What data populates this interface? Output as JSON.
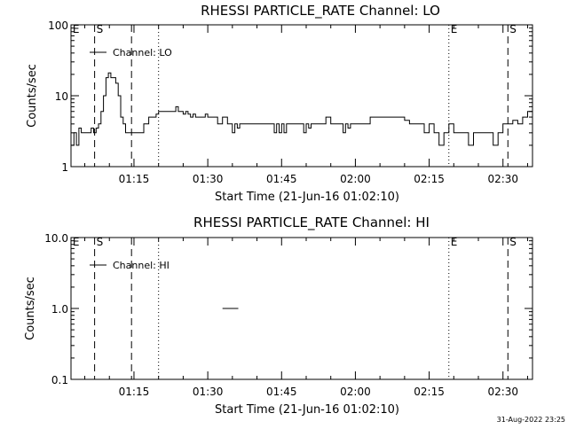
{
  "footer": {
    "timestamp": "31-Aug-2022 23:25"
  },
  "chart_data": [
    {
      "type": "line",
      "title": "RHESSI PARTICLE_RATE Channel: LO",
      "xlabel": "Start Time (21-Jun-16 01:02:10)",
      "ylabel": "Counts/sec",
      "yscale": "log",
      "ylim": [
        1,
        100
      ],
      "yticks": [
        "1",
        "10",
        "100"
      ],
      "xlim_minutes_after_01_00": [
        2.2,
        96
      ],
      "xticks": [
        "01:15",
        "01:30",
        "01:45",
        "02:00",
        "02:15",
        "02:30"
      ],
      "legend": {
        "label": "Channel: LO",
        "position": "top-left"
      },
      "markers": [
        {
          "label": "E",
          "time": "01:02:10",
          "style": "none"
        },
        {
          "label": "S",
          "time": "01:07",
          "style": "dashed"
        },
        {
          "label": "",
          "time": "01:14:30",
          "style": "dashed"
        },
        {
          "label": "",
          "time": "01:20",
          "style": "dotted"
        },
        {
          "label": "E",
          "time": "02:19",
          "style": "dotted"
        },
        {
          "label": "S",
          "time": "02:31",
          "style": "dashed"
        },
        {
          "label": "",
          "time": "02:36",
          "style": "dashdot"
        }
      ],
      "series": [
        {
          "x": [
            2.2,
            2.8,
            3.3,
            3.8,
            4.3,
            4.8,
            5.3,
            5.8,
            6.3,
            6.8,
            7.3,
            7.8,
            8.3,
            8.8,
            9.3,
            9.8,
            10.3,
            10.8,
            11.3,
            11.8,
            12.3,
            12.8,
            13.3,
            13.8,
            14.3,
            15,
            16,
            17,
            18,
            19,
            19.5,
            20,
            21,
            22,
            23,
            23.5,
            24,
            24.5,
            25,
            25.5,
            26,
            26.5,
            27,
            27.5,
            28,
            28.5,
            29,
            29.5,
            30,
            31,
            32,
            33,
            34,
            35,
            35.5,
            36,
            36.5,
            37,
            38,
            39,
            40,
            41,
            42,
            43,
            43.5,
            44,
            44.5,
            45,
            45.5,
            46,
            47,
            48,
            49,
            49.5,
            50,
            50.5,
            51,
            52,
            53,
            54,
            55,
            56,
            57,
            57.5,
            58,
            58.5,
            59,
            60,
            61,
            62,
            63,
            64,
            65,
            66,
            67,
            68,
            69,
            70,
            71,
            72,
            73,
            74,
            75,
            76,
            77,
            78,
            79,
            80,
            81,
            82,
            83,
            84,
            85,
            86,
            87,
            88,
            89,
            90,
            91,
            92,
            93,
            94,
            95,
            96
          ],
          "y": [
            2,
            3,
            2,
            3.5,
            3,
            3,
            3,
            3,
            3.5,
            3,
            3.5,
            4,
            6,
            10,
            18,
            21,
            18,
            18,
            15,
            10,
            5,
            4,
            3,
            3,
            3,
            3,
            3,
            4,
            5,
            5,
            5.5,
            6,
            6,
            6,
            6,
            7,
            6,
            6,
            5.5,
            6,
            5.5,
            5,
            5.5,
            5,
            5,
            5,
            5,
            5.5,
            5,
            5,
            4,
            5,
            4,
            3,
            4,
            3.5,
            4,
            4,
            4,
            4,
            4,
            4,
            4,
            4,
            3,
            4,
            3,
            4,
            3,
            4,
            4,
            4,
            4,
            3,
            4,
            3.5,
            4,
            4,
            4,
            5,
            4,
            4,
            4,
            3,
            4,
            3.5,
            4,
            4,
            4,
            4,
            5,
            5,
            5,
            5,
            5,
            5,
            5,
            4.5,
            4,
            4,
            4,
            3,
            4,
            3,
            2,
            3,
            4,
            3,
            3,
            3,
            2,
            3,
            3,
            3,
            3,
            2,
            3,
            4,
            4,
            4.5,
            4,
            5,
            6,
            5
          ]
        }
      ]
    },
    {
      "type": "line",
      "title": "RHESSI PARTICLE_RATE Channel: HI",
      "xlabel": "Start Time (21-Jun-16 01:02:10)",
      "ylabel": "Counts/sec",
      "yscale": "log",
      "ylim": [
        0.1,
        10
      ],
      "yticks": [
        "0.1",
        "1.0",
        "10.0"
      ],
      "xlim_minutes_after_01_00": [
        2.2,
        96
      ],
      "xticks": [
        "01:15",
        "01:30",
        "01:45",
        "02:00",
        "02:15",
        "02:30"
      ],
      "legend": {
        "label": "Channel: HI",
        "position": "top-left"
      },
      "markers": [
        {
          "label": "E",
          "time": "01:02:10",
          "style": "none"
        },
        {
          "label": "S",
          "time": "01:07",
          "style": "dashed"
        },
        {
          "label": "",
          "time": "01:14:30",
          "style": "dashed"
        },
        {
          "label": "",
          "time": "01:20",
          "style": "dotted"
        },
        {
          "label": "E",
          "time": "02:19",
          "style": "dotted"
        },
        {
          "label": "S",
          "time": "02:31",
          "style": "dashed"
        },
        {
          "label": "",
          "time": "02:36",
          "style": "dashdot"
        }
      ],
      "series": [
        {
          "x": [
            33,
            36.2
          ],
          "y": [
            1,
            1
          ]
        }
      ]
    }
  ]
}
